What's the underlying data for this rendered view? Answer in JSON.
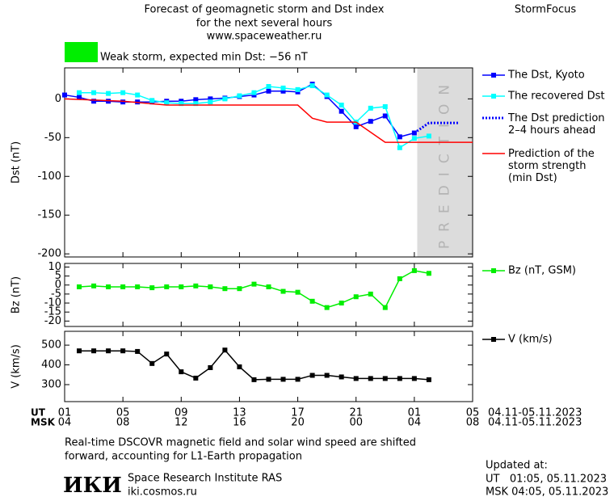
{
  "header": {
    "title_lines": [
      "Forecast of geomagnetic storm and Dst index",
      "for the next several hours",
      "www.spaceweather.ru"
    ],
    "brand": "StormFocus",
    "storm_label": "Weak storm, expected min Dst: −56 nT",
    "storm_color": "#00ee00"
  },
  "chart_data": [
    {
      "type": "line",
      "ylabel": "Dst (nT)",
      "xlim": [
        0,
        28
      ],
      "xticks": [
        0,
        4,
        8,
        12,
        16,
        20,
        24,
        28
      ],
      "ylim": [
        -204,
        40
      ],
      "yticks": [
        0,
        -50,
        -100,
        -150,
        -200
      ],
      "prediction_zone": {
        "label": "PREDICTION",
        "x": [
          24.2,
          28
        ],
        "color": "#dcdcdc"
      },
      "series": [
        {
          "name": "The Dst, Kyoto",
          "color": "#0000ff",
          "marker": "square",
          "style": "solid",
          "x": [
            0,
            1,
            2,
            3,
            4,
            5,
            6,
            7,
            8,
            9,
            10,
            11,
            12,
            13,
            14,
            15,
            16,
            17,
            18,
            19,
            20,
            21,
            22,
            23,
            24
          ],
          "values": [
            5,
            2,
            -3,
            -3,
            -4,
            -4,
            -4,
            -3,
            -3,
            -1,
            0,
            1,
            3,
            5,
            10,
            10,
            9,
            19,
            3,
            -16,
            -36,
            -29,
            -22,
            -49,
            -44
          ]
        },
        {
          "name": "The recovered Dst",
          "color": "#00ffff",
          "marker": "square",
          "style": "solid",
          "x": [
            1,
            2,
            3,
            4,
            5,
            6,
            7,
            8,
            9,
            10,
            11,
            12,
            13,
            14,
            15,
            16,
            17,
            18,
            19,
            20,
            21,
            22,
            23,
            24,
            25
          ],
          "values": [
            8,
            8,
            7,
            8,
            5,
            -2,
            -5,
            -6,
            -6,
            -4,
            0,
            4,
            8,
            16,
            14,
            12,
            17,
            5,
            -8,
            -30,
            -12,
            -10,
            -63,
            -51,
            -48
          ]
        },
        {
          "name": "The Dst prediction\n2–4 hours ahead",
          "color": "#0000ff",
          "marker": "none",
          "style": "dotted",
          "x": [
            24,
            25,
            26,
            27
          ],
          "values": [
            -44,
            -31,
            -31,
            -31
          ]
        },
        {
          "name": "Prediction of the\nstorm strength\n(min Dst)",
          "color": "#ff0000",
          "marker": "none",
          "style": "solid",
          "x": [
            0,
            4,
            7,
            16,
            17,
            18,
            20,
            22,
            28
          ],
          "values": [
            0,
            -3,
            -8,
            -8,
            -25,
            -30,
            -30,
            -56,
            -56
          ]
        }
      ]
    },
    {
      "type": "line",
      "ylabel": "Bz (nT)",
      "xlim": [
        0,
        28
      ],
      "xticks": [
        0,
        4,
        8,
        12,
        16,
        20,
        24,
        28
      ],
      "ylim": [
        -23,
        12
      ],
      "yticks": [
        10,
        5,
        0,
        -5,
        -10,
        -15,
        -20
      ],
      "series": [
        {
          "name": "Bz (nT, GSM)",
          "color": "#00ee00",
          "marker": "square",
          "style": "solid",
          "x": [
            1,
            2,
            3,
            4,
            5,
            6,
            7,
            8,
            9,
            10,
            11,
            12,
            13,
            14,
            15,
            16,
            17,
            18,
            19,
            20,
            21,
            22,
            23,
            24,
            25
          ],
          "values": [
            -1,
            -0.5,
            -1,
            -1,
            -1,
            -1.5,
            -1,
            -1,
            -0.5,
            -1,
            -2,
            -2,
            0.5,
            -1,
            -3.5,
            -4,
            -9,
            -12.5,
            -10,
            -6.5,
            -5,
            -12.5,
            3.5,
            8,
            6.5
          ]
        }
      ]
    },
    {
      "type": "line",
      "ylabel": "V (km/s)",
      "xlim": [
        0,
        28
      ],
      "xticks": [
        0,
        4,
        8,
        12,
        16,
        20,
        24,
        28
      ],
      "ylim": [
        214,
        570
      ],
      "yticks": [
        500,
        400,
        300
      ],
      "series": [
        {
          "name": "V (km/s)",
          "color": "#000000",
          "marker": "square",
          "style": "solid",
          "x": [
            1,
            2,
            3,
            4,
            5,
            6,
            7,
            8,
            9,
            10,
            11,
            12,
            13,
            14,
            15,
            16,
            17,
            18,
            19,
            20,
            21,
            22,
            23,
            24,
            25
          ],
          "values": [
            471,
            471,
            471,
            471,
            468,
            407,
            455,
            365,
            333,
            386,
            475,
            390,
            325,
            327,
            327,
            327,
            347,
            347,
            339,
            331,
            331,
            331,
            331,
            331,
            325
          ]
        }
      ]
    }
  ],
  "x_axis": {
    "rows": [
      {
        "name": "UT",
        "labels": [
          "01",
          "05",
          "09",
          "13",
          "17",
          "21",
          "01",
          "05"
        ],
        "date_range": "04.11-05.11.2023"
      },
      {
        "name": "MSK",
        "labels": [
          "04",
          "08",
          "12",
          "16",
          "20",
          "00",
          "04",
          "08"
        ],
        "date_range": "04.11-05.11.2023"
      }
    ]
  },
  "footer": {
    "note_lines": [
      "Real-time DSCOVR magnetic field and solar wind speed are shifted",
      "forward, accounting for L1-Earth propagation"
    ],
    "logo": "ИКИ",
    "institute": "Space Research Institute RAS",
    "site": "iki.cosmos.ru",
    "updated_lines": [
      "Updated at:",
      "UT   01:05, 05.11.2023",
      "MSK 04:05, 05.11.2023"
    ]
  }
}
